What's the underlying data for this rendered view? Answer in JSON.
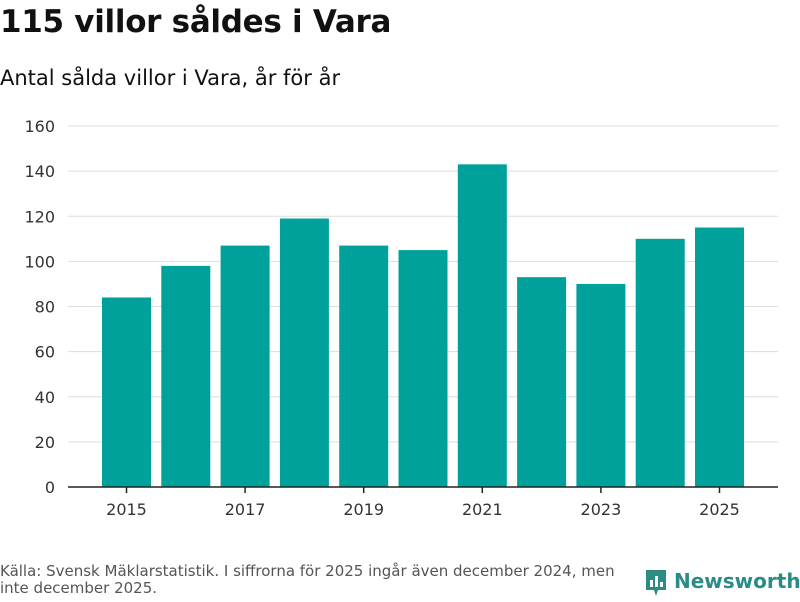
{
  "header": {
    "title": "115 villor såldes i Vara",
    "subtitle": "Antal sålda villor i Vara, år för år"
  },
  "chart_data": {
    "type": "bar",
    "title": "115 villor såldes i Vara",
    "subtitle": "Antal sålda villor i Vara, år för år",
    "xlabel": "",
    "ylabel": "",
    "categories": [
      "2015",
      "2016",
      "2017",
      "2018",
      "2019",
      "2020",
      "2021",
      "2022",
      "2023",
      "2024",
      "2025"
    ],
    "values": [
      84,
      98,
      107,
      119,
      107,
      105,
      143,
      93,
      90,
      110,
      115
    ],
    "x_tick_labels": [
      "2015",
      "2017",
      "2019",
      "2021",
      "2023",
      "2025"
    ],
    "y_ticks": [
      0,
      20,
      40,
      60,
      80,
      100,
      120,
      140,
      160
    ],
    "ylim": [
      0,
      160
    ],
    "grid": true,
    "bar_color": "#00a19a"
  },
  "footer": {
    "source": "Källa: Svensk Mäklarstatistik. I siffrorna för 2025 ingår även december 2024, men inte december 2025.",
    "brand": "Newsworthy",
    "brand_color": "#2a8c85"
  }
}
